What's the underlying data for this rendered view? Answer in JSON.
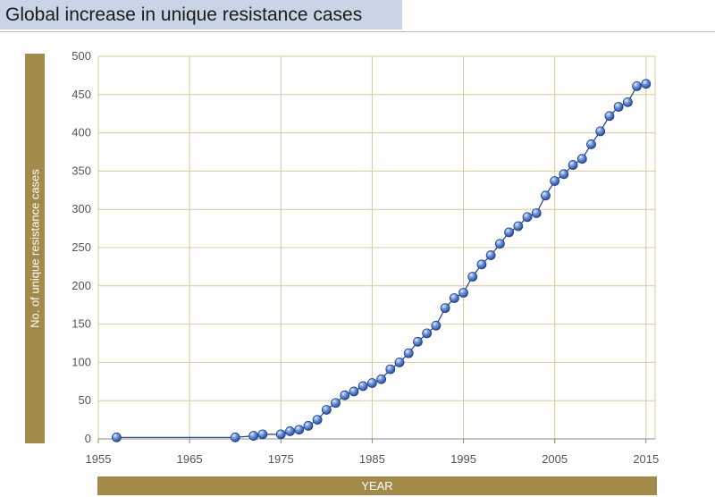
{
  "chart_data": {
    "type": "scatter",
    "title": "Global increase in unique resistance cases",
    "xlabel": "YEAR",
    "ylabel": "No. of unique resistance cases",
    "xlim": [
      1955,
      2016
    ],
    "ylim": [
      0,
      500
    ],
    "x_ticks": [
      1955,
      1965,
      1975,
      1985,
      1995,
      2005,
      2015
    ],
    "y_ticks": [
      0,
      50,
      100,
      150,
      200,
      250,
      300,
      350,
      400,
      450,
      500
    ],
    "grid": true,
    "colors": {
      "grid": "#d8c89b",
      "marker": "#4a76c9",
      "marker_edge": "#1f3f86",
      "line": "#1f3f86",
      "label_band": "#a48a4a",
      "title_band": "#c9d4e6"
    },
    "series": [
      {
        "x": [
          1957,
          1970,
          1972,
          1973,
          1975,
          1976,
          1977,
          1978,
          1979,
          1980,
          1981,
          1982,
          1983,
          1984,
          1985,
          1986,
          1987,
          1988,
          1989,
          1990,
          1991,
          1992,
          1993,
          1994,
          1995,
          1996,
          1997,
          1998,
          1999,
          2000,
          2001,
          2002,
          2003,
          2004,
          2005,
          2006,
          2007,
          2008,
          2009,
          2010,
          2011,
          2012,
          2013,
          2014,
          2015
        ],
        "y": [
          2,
          2,
          4,
          6,
          6,
          10,
          12,
          17,
          25,
          38,
          47,
          57,
          62,
          69,
          73,
          78,
          91,
          100,
          112,
          127,
          138,
          148,
          171,
          184,
          191,
          212,
          228,
          240,
          255,
          270,
          278,
          290,
          295,
          318,
          337,
          346,
          358,
          366,
          385,
          402,
          422,
          434,
          440,
          461,
          464
        ]
      }
    ]
  }
}
